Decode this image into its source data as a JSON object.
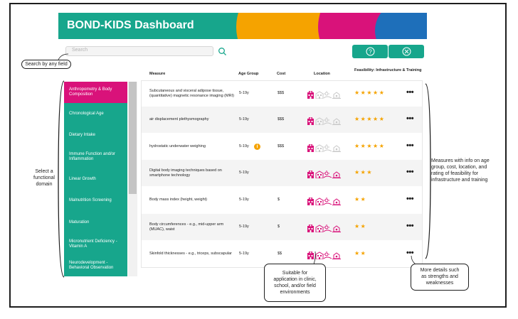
{
  "app": {
    "title": "BOND-KIDS Dashboard",
    "brand_colors": {
      "primary": "#17a68c",
      "pink": "#d9127a",
      "yellow": "#f5a300",
      "blue": "#1e6fba"
    }
  },
  "search": {
    "placeholder": "Search",
    "icon": "search-icon"
  },
  "toolbar": {
    "help_icon": "question-circle-icon",
    "close_icon": "x-circle-icon"
  },
  "annotations": {
    "search": "Search by any field",
    "domain": [
      "Select a",
      "functional",
      "domain"
    ],
    "measures": [
      "Measures with info on age",
      "group, cost, location, and",
      "rating of feasibility for",
      "infrastructure and training"
    ],
    "location": [
      "Suitable for",
      "application in clinic,",
      "school, and/or field",
      "environments"
    ],
    "details": [
      "More details such",
      "as strengths and",
      "weaknesses"
    ]
  },
  "sidebar": {
    "items": [
      {
        "label": "Anthropometry & Body Composition",
        "active": true
      },
      {
        "label": "Chronological Age",
        "active": false
      },
      {
        "label": "Dietary Intake",
        "active": false
      },
      {
        "label": "Immune Function and/or Inflammation",
        "active": false
      },
      {
        "label": "Linear Growth",
        "active": false
      },
      {
        "label": "Malnutrition Screening",
        "active": false
      },
      {
        "label": "Maturation",
        "active": false
      },
      {
        "label": "Micronutrient Deficiency - Vitamin A",
        "active": false
      },
      {
        "label": "Neurodevelopment - Behavioral Observation",
        "active": false
      }
    ]
  },
  "table": {
    "headers": {
      "measure": "Measure",
      "age": "Age Group",
      "cost": "Cost",
      "location": "Location",
      "feasibility": "Feasibility: Infrastructure & Training"
    },
    "rows": [
      {
        "measure": "Subcutaneous and visceral adipose tissue, (quantitative) magnetic resonance imaging (MRI)",
        "age": "5-19y",
        "cost": "$$$",
        "info": false,
        "stars": 5,
        "loc": [
          1,
          0,
          0,
          0
        ]
      },
      {
        "measure": "air displacement plethysmography",
        "age": "5-19y",
        "cost": "$$$",
        "info": false,
        "stars": 5,
        "loc": [
          1,
          0,
          0,
          0
        ]
      },
      {
        "measure": "hydrostatic underwater weighing",
        "age": "5-19y",
        "cost": "$$$",
        "info": true,
        "info_symbol": "i",
        "stars": 5,
        "loc": [
          1,
          0,
          0,
          0
        ]
      },
      {
        "measure": "Digital body imaging techniques based on smartphone technology",
        "age": "5-19y",
        "cost": "",
        "info": false,
        "stars": 3,
        "loc": [
          1,
          1,
          1,
          1
        ]
      },
      {
        "measure": "Body mass index (height, weight)",
        "age": "5-19y",
        "cost": "$",
        "info": false,
        "stars": 2,
        "loc": [
          1,
          1,
          1,
          1
        ]
      },
      {
        "measure": "Body circumferences - e.g., mid-upper arm (MUAC), waist",
        "age": "5-19y",
        "cost": "$",
        "info": false,
        "stars": 2,
        "loc": [
          1,
          1,
          1,
          1
        ]
      },
      {
        "measure": "Skinfold thicknesses - e.g., triceps, subscapular",
        "age": "5-19y",
        "cost": "$$",
        "info": false,
        "stars": 2,
        "loc": [
          1,
          1,
          1,
          1
        ]
      }
    ],
    "more_label": "•••",
    "location_icons": [
      "hospital-icon",
      "school-icon",
      "sun-field-icon",
      "home-field-icon"
    ]
  }
}
